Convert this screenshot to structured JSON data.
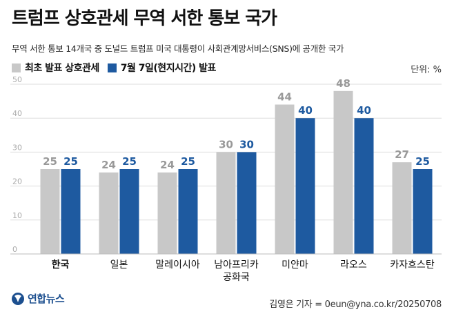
{
  "title": "트럼프 상호관세 무역 서한 통보 국가",
  "subtitle": "무역 서한 통보 14개국 중 도널드 트럼프 미국 대통령이 사회관계망서비스(SNS)에 공개한 국가",
  "unit": "단위: %",
  "source": "김영은 기자 = 0eun@yna.co.kr/20250708",
  "logo": {
    "text": "연합뉴스",
    "icon": "yonhap-logo-icon"
  },
  "colors": {
    "series1": "#c8c8c8",
    "series2": "#1e5aa0",
    "label1": "#999999",
    "label2": "#1e5aa0",
    "grid": "#dddddd"
  },
  "chart_data": {
    "type": "bar",
    "categories": [
      "한국",
      "일본",
      "말레이시아",
      "남아프리카\n공화국",
      "미얀마",
      "라오스",
      "카자흐스탄"
    ],
    "highlight_category": "한국",
    "series": [
      {
        "name": "최초 발표 상호관세",
        "values": [
          25,
          24,
          24,
          30,
          44,
          48,
          27
        ]
      },
      {
        "name": "7월 7일(현지시간) 발표",
        "values": [
          25,
          25,
          25,
          30,
          40,
          40,
          25
        ]
      }
    ],
    "yticks": [
      0,
      10,
      20,
      30,
      40,
      50
    ],
    "ylim": [
      0,
      50
    ],
    "grid": true,
    "legend": "top-left"
  }
}
